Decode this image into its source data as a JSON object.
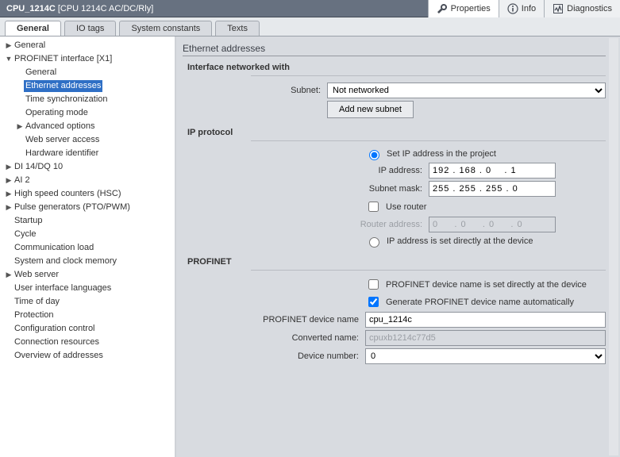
{
  "title": {
    "name": "CPU_1214C",
    "type": "[CPU 1214C AC/DC/Rly]"
  },
  "top_tabs": [
    {
      "label": "Properties",
      "active": true
    },
    {
      "label": "Info",
      "active": false
    },
    {
      "label": "Diagnostics",
      "active": false
    }
  ],
  "inspect_tabs": [
    {
      "label": "General",
      "active": true
    },
    {
      "label": "IO tags",
      "active": false
    },
    {
      "label": "System constants",
      "active": false
    },
    {
      "label": "Texts",
      "active": false
    }
  ],
  "nav": [
    {
      "label": "General",
      "depth": 0,
      "caret": "right"
    },
    {
      "label": "PROFINET interface [X1]",
      "depth": 0,
      "caret": "down"
    },
    {
      "label": "General",
      "depth": 1
    },
    {
      "label": "Ethernet addresses",
      "depth": 1,
      "selected": true
    },
    {
      "label": "Time synchronization",
      "depth": 1
    },
    {
      "label": "Operating mode",
      "depth": 1
    },
    {
      "label": "Advanced options",
      "depth": 1,
      "caret": "right"
    },
    {
      "label": "Web server access",
      "depth": 1
    },
    {
      "label": "Hardware identifier",
      "depth": 1
    },
    {
      "label": "DI 14/DQ 10",
      "depth": 0,
      "caret": "right"
    },
    {
      "label": "AI 2",
      "depth": 0,
      "caret": "right"
    },
    {
      "label": "High speed counters (HSC)",
      "depth": 0,
      "caret": "right"
    },
    {
      "label": "Pulse generators (PTO/PWM)",
      "depth": 0,
      "caret": "right"
    },
    {
      "label": "Startup",
      "depth": 0
    },
    {
      "label": "Cycle",
      "depth": 0
    },
    {
      "label": "Communication load",
      "depth": 0
    },
    {
      "label": "System and clock memory",
      "depth": 0
    },
    {
      "label": "Web server",
      "depth": 0,
      "caret": "right"
    },
    {
      "label": "User interface languages",
      "depth": 0
    },
    {
      "label": "Time of day",
      "depth": 0
    },
    {
      "label": "Protection",
      "depth": 0
    },
    {
      "label": "Configuration control",
      "depth": 0
    },
    {
      "label": "Connection resources",
      "depth": 0
    },
    {
      "label": "Overview of addresses",
      "depth": 0
    }
  ],
  "content": {
    "section_title": "Ethernet addresses",
    "interface": {
      "heading": "Interface networked with",
      "subnet_label": "Subnet:",
      "subnet_value": "Not networked",
      "add_subnet_btn": "Add new subnet"
    },
    "ip": {
      "heading": "IP protocol",
      "opt_set_in_project": "Set IP address in the project",
      "ip_label": "IP address:",
      "ip_value": "192 . 168 . 0    . 1",
      "mask_label": "Subnet mask:",
      "mask_value": "255 . 255 . 255 . 0",
      "use_router": "Use router",
      "router_label": "Router address:",
      "router_value": "0     . 0     . 0     . 0",
      "opt_set_at_device": "IP address is set directly at the device"
    },
    "profinet": {
      "heading": "PROFINET",
      "name_at_device": "PROFINET device name is set directly at the device",
      "gen_auto": "Generate PROFINET device name automatically",
      "name_label": "PROFINET device name",
      "name_value": "cpu_1214c",
      "conv_label": "Converted name:",
      "conv_value": "cpuxb1214c77d5",
      "devno_label": "Device number:",
      "devno_value": "0"
    }
  }
}
